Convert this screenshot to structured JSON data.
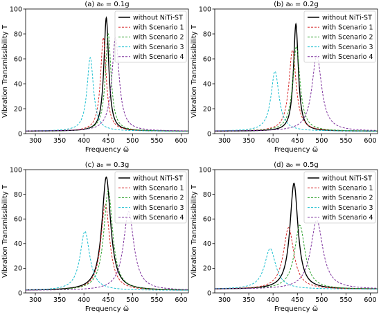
{
  "figure": {
    "shared_axes": {
      "xlabel": "Frequency ω̃",
      "ylabel": "Vibration Transmissibility   T",
      "xlim": [
        280,
        615
      ],
      "ylim": [
        0,
        100
      ],
      "xticks": [
        300,
        350,
        400,
        450,
        500,
        550,
        600
      ],
      "yticks": [
        0,
        20,
        40,
        60,
        80,
        100
      ]
    },
    "legend_placement": "top-right",
    "grid": false
  },
  "colors": {
    "without NiTi-ST": "#000000",
    "with Scenario 1": "#d62728",
    "with Scenario 2": "#2ca02c",
    "with Scenario 3": "#17becf",
    "with Scenario 4": "#7b2d9b"
  },
  "chart_data": [
    {
      "type": "line",
      "title": "(a) a₀ = 0.1g",
      "xlabel": "Frequency ω̃",
      "ylabel": "Vibration Transmissibility   T",
      "xlim": [
        280,
        615
      ],
      "ylim": [
        0,
        100
      ],
      "legend": [
        "without NiTi-ST",
        "with Scenario 1",
        "with Scenario 2",
        "with Scenario 3",
        "with Scenario 4"
      ],
      "series": [
        {
          "name": "without NiTi-ST",
          "style": "solid",
          "peak_x": 446,
          "peak_y": 93,
          "base_y": 2,
          "half_width": 6
        },
        {
          "name": "with Scenario 1",
          "style": "dashed",
          "peak_x": 440,
          "peak_y": 77,
          "base_y": 2,
          "half_width": 7
        },
        {
          "name": "with Scenario 2",
          "style": "dashed",
          "peak_x": 450,
          "peak_y": 80,
          "base_y": 2,
          "half_width": 7
        },
        {
          "name": "with Scenario 3",
          "style": "dashed",
          "peak_x": 413,
          "peak_y": 61,
          "base_y": 2,
          "half_width": 8
        },
        {
          "name": "with Scenario 4",
          "style": "dashed",
          "peak_x": 465,
          "peak_y": 77,
          "base_y": 2,
          "half_width": 9
        }
      ]
    },
    {
      "type": "line",
      "title": "(b) a₀ = 0.2g",
      "xlabel": "Frequency ω̃",
      "ylabel": "Vibration Transmissibility   T",
      "xlim": [
        280,
        615
      ],
      "ylim": [
        0,
        100
      ],
      "legend": [
        "without NiTi-ST",
        "with Scenario 1",
        "with Scenario 2",
        "with Scenario 3",
        "with Scenario 4"
      ],
      "series": [
        {
          "name": "without NiTi-ST",
          "style": "solid",
          "peak_x": 447,
          "peak_y": 88,
          "base_y": 2,
          "half_width": 6
        },
        {
          "name": "with Scenario 1",
          "style": "dashed",
          "peak_x": 440,
          "peak_y": 67,
          "base_y": 2,
          "half_width": 9
        },
        {
          "name": "with Scenario 2",
          "style": "dashed",
          "peak_x": 448,
          "peak_y": 70,
          "base_y": 2,
          "half_width": 9
        },
        {
          "name": "with Scenario 3",
          "style": "dashed",
          "peak_x": 404,
          "peak_y": 50,
          "base_y": 2,
          "half_width": 10
        },
        {
          "name": "with Scenario 4",
          "style": "dashed",
          "peak_x": 490,
          "peak_y": 63,
          "base_y": 2,
          "half_width": 12
        }
      ]
    },
    {
      "type": "line",
      "title": "(c) a₀ = 0.3g",
      "xlabel": "Frequency ω̃",
      "ylabel": "Vibration Transmissibility   T",
      "xlim": [
        280,
        615
      ],
      "ylim": [
        0,
        100
      ],
      "legend": [
        "without NiTi-ST",
        "with Scenario 1",
        "with Scenario 2",
        "with Scenario 3",
        "with Scenario 4"
      ],
      "series": [
        {
          "name": "without NiTi-ST",
          "style": "solid",
          "peak_x": 446,
          "peak_y": 94,
          "base_y": 2,
          "half_width": 11
        },
        {
          "name": "with Scenario 1",
          "style": "dashed",
          "peak_x": 444,
          "peak_y": 72,
          "base_y": 2,
          "half_width": 11
        },
        {
          "name": "with Scenario 2",
          "style": "dashed",
          "peak_x": 450,
          "peak_y": 83,
          "base_y": 2,
          "half_width": 11
        },
        {
          "name": "with Scenario 3",
          "style": "dashed",
          "peak_x": 402,
          "peak_y": 50,
          "base_y": 2,
          "half_width": 12
        },
        {
          "name": "with Scenario 4",
          "style": "dashed",
          "peak_x": 492,
          "peak_y": 66,
          "base_y": 2,
          "half_width": 13
        }
      ]
    },
    {
      "type": "line",
      "title": "(d) a₀ = 0.5g",
      "xlabel": "Frequency ω̃",
      "ylabel": "Vibration Transmissibility   T",
      "xlim": [
        280,
        615
      ],
      "ylim": [
        0,
        100
      ],
      "legend": [
        "without NiTi-ST",
        "with Scenario 1",
        "with Scenario 2",
        "with Scenario 3",
        "with Scenario 4"
      ],
      "series": [
        {
          "name": "without NiTi-ST",
          "style": "solid",
          "peak_x": 443,
          "peak_y": 89,
          "base_y": 3,
          "half_width": 10
        },
        {
          "name": "with Scenario 1",
          "style": "dashed",
          "peak_x": 432,
          "peak_y": 53,
          "base_y": 3,
          "half_width": 13
        },
        {
          "name": "with Scenario 2",
          "style": "dashed",
          "peak_x": 455,
          "peak_y": 55,
          "base_y": 3,
          "half_width": 13
        },
        {
          "name": "with Scenario 3",
          "style": "dashed",
          "peak_x": 394,
          "peak_y": 36,
          "base_y": 3,
          "half_width": 14
        },
        {
          "name": "with Scenario 4",
          "style": "dashed",
          "peak_x": 490,
          "peak_y": 59,
          "base_y": 3,
          "half_width": 15
        }
      ]
    }
  ]
}
